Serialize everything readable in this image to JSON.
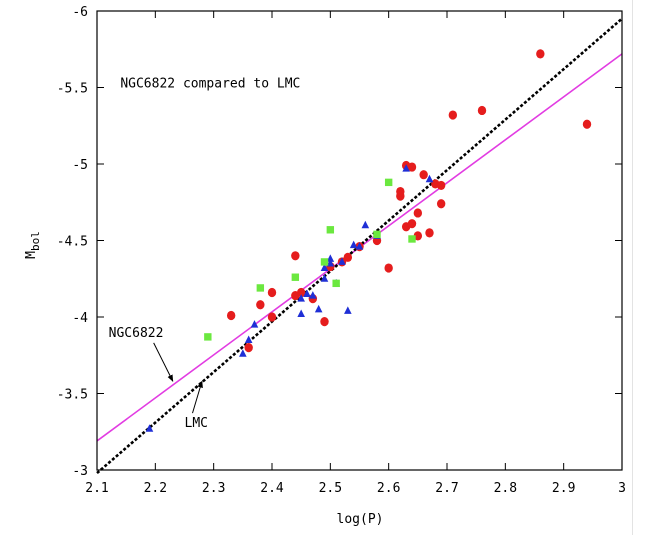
{
  "chart_data": {
    "type": "scatter",
    "title": "",
    "xlabel": "log(P)",
    "ylabel": "M_bol",
    "xlim": [
      2.1,
      3.0
    ],
    "ylim": [
      -3.0,
      -6.0
    ],
    "y_inverted": true,
    "grid": false,
    "x_ticks": [
      "2.1",
      "2.2",
      "2.3",
      "2.4",
      "2.5",
      "2.6",
      "2.7",
      "2.8",
      "2.9",
      "3"
    ],
    "y_ticks": [
      "-3",
      "-3.5",
      "-4",
      "-4.5",
      "-5",
      "-5.5",
      "-6"
    ],
    "annotations": [
      {
        "text": "NGC6822 compared to LMC",
        "x": 2.14,
        "y": -5.5
      },
      {
        "text": "NGC6822",
        "x": 2.12,
        "y": -3.87,
        "arrow_to": [
          2.23,
          -3.58
        ]
      },
      {
        "text": "LMC",
        "x": 2.25,
        "y": -3.28,
        "arrow_to": [
          2.28,
          -3.58
        ]
      }
    ],
    "colors": {
      "red": "#e51d1d",
      "blue": "#1f2fd6",
      "green": "#6be83f",
      "magenta": "#e23ce2",
      "black": "#000000"
    },
    "series": [
      {
        "marker": "circle",
        "color": "#e51d1d",
        "x": [
          2.33,
          2.36,
          2.38,
          2.4,
          2.4,
          2.44,
          2.44,
          2.45,
          2.47,
          2.49,
          2.5,
          2.52,
          2.53,
          2.55,
          2.58,
          2.6,
          2.62,
          2.62,
          2.63,
          2.63,
          2.64,
          2.64,
          2.65,
          2.65,
          2.66,
          2.67,
          2.68,
          2.69,
          2.69,
          2.71,
          2.76,
          2.86,
          2.94
        ],
        "y": [
          -4.01,
          -3.8,
          -4.08,
          -4.16,
          -4.0,
          -4.4,
          -4.14,
          -4.16,
          -4.12,
          -3.97,
          -4.33,
          -4.36,
          -4.39,
          -4.46,
          -4.5,
          -4.32,
          -4.79,
          -4.82,
          -4.59,
          -4.99,
          -4.61,
          -4.98,
          -4.53,
          -4.68,
          -4.93,
          -4.55,
          -4.87,
          -4.74,
          -4.86,
          -5.32,
          -5.35,
          -5.72,
          -5.26
        ]
      },
      {
        "marker": "triangle",
        "color": "#1f2fd6",
        "x": [
          2.19,
          2.35,
          2.36,
          2.37,
          2.45,
          2.45,
          2.46,
          2.47,
          2.48,
          2.49,
          2.49,
          2.5,
          2.5,
          2.51,
          2.52,
          2.53,
          2.54,
          2.55,
          2.56,
          2.58,
          2.63,
          2.67
        ],
        "y": [
          -3.27,
          -3.76,
          -3.85,
          -3.95,
          -4.02,
          -4.12,
          -4.15,
          -4.14,
          -4.05,
          -4.25,
          -4.32,
          -4.35,
          -4.38,
          -4.22,
          -4.36,
          -4.04,
          -4.47,
          -4.46,
          -4.6,
          -4.53,
          -4.97,
          -4.9
        ]
      },
      {
        "marker": "square",
        "color": "#6be83f",
        "x": [
          2.29,
          2.38,
          2.44,
          2.49,
          2.5,
          2.51,
          2.58,
          2.6,
          2.64
        ],
        "y": [
          -3.87,
          -4.19,
          -4.26,
          -4.36,
          -4.57,
          -4.22,
          -4.54,
          -4.88,
          -4.51
        ]
      },
      {
        "type": "line",
        "style": "solid",
        "label": "NGC6822",
        "color": "#e23ce2",
        "x": [
          2.1,
          3.0
        ],
        "y": [
          -3.19,
          -5.72
        ]
      },
      {
        "type": "line",
        "style": "dashed",
        "label": "LMC",
        "color": "#000000",
        "x": [
          2.1,
          3.0
        ],
        "y": [
          -2.98,
          -5.95
        ]
      }
    ]
  }
}
